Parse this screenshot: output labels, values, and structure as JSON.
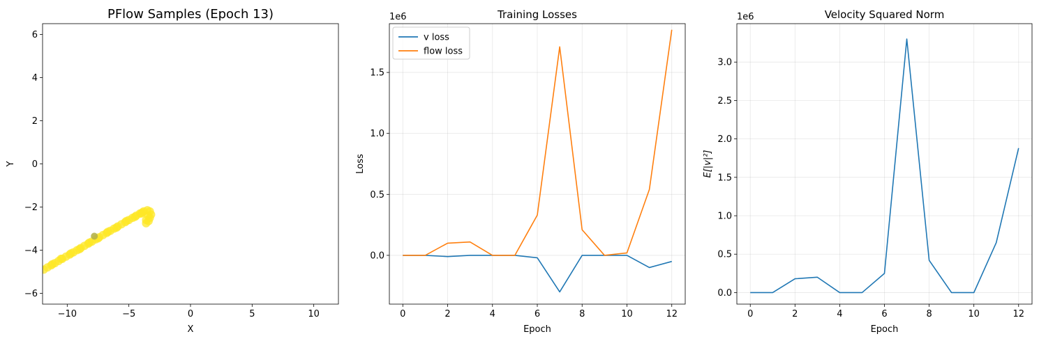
{
  "chart_data": [
    {
      "type": "scatter",
      "title": "PFlow Samples (Epoch 13)",
      "xlabel": "X",
      "ylabel": "Y",
      "xlim": [
        -12,
        12
      ],
      "ylim": [
        -6.5,
        6.5
      ],
      "xticks": [
        -10,
        -5,
        0,
        5,
        10
      ],
      "xtick_labels": [
        "−10",
        "−5",
        "0",
        "5",
        "10"
      ],
      "yticks": [
        -6,
        -4,
        -2,
        0,
        2,
        4,
        6
      ],
      "ytick_labels": [
        "−6",
        "−4",
        "−2",
        "0",
        "2",
        "4",
        "6"
      ],
      "grid": false,
      "point_color": "#fde725",
      "highlight_color": "#b5b34a",
      "points": [
        [
          -3.4,
          -2.65
        ],
        [
          -3.6,
          -2.6
        ],
        [
          -3.3,
          -2.5
        ],
        [
          -3.2,
          -2.35
        ],
        [
          -3.3,
          -2.2
        ],
        [
          -3.5,
          -2.15
        ],
        [
          -3.8,
          -2.2
        ],
        [
          -4.1,
          -2.3
        ],
        [
          -4.4,
          -2.4
        ],
        [
          -4.7,
          -2.5
        ],
        [
          -5.0,
          -2.6
        ],
        [
          -5.3,
          -2.7
        ],
        [
          -5.6,
          -2.8
        ],
        [
          -5.9,
          -2.9
        ],
        [
          -6.2,
          -3.0
        ],
        [
          -6.5,
          -3.1
        ],
        [
          -6.8,
          -3.2
        ],
        [
          -7.1,
          -3.3
        ],
        [
          -7.4,
          -3.4
        ],
        [
          -7.7,
          -3.5
        ],
        [
          -8.0,
          -3.6
        ],
        [
          -8.3,
          -3.7
        ],
        [
          -8.6,
          -3.8
        ],
        [
          -8.9,
          -3.9
        ],
        [
          -9.2,
          -4.0
        ],
        [
          -9.5,
          -4.1
        ],
        [
          -9.8,
          -4.2
        ],
        [
          -10.1,
          -4.3
        ],
        [
          -10.4,
          -4.4
        ],
        [
          -10.7,
          -4.5
        ],
        [
          -11.0,
          -4.6
        ],
        [
          -11.3,
          -4.7
        ],
        [
          -11.6,
          -4.8
        ],
        [
          -11.9,
          -4.9
        ],
        [
          -3.9,
          -2.25
        ],
        [
          -4.5,
          -2.45
        ],
        [
          -5.2,
          -2.65
        ],
        [
          -6.0,
          -2.95
        ],
        [
          -6.7,
          -3.15
        ],
        [
          -7.5,
          -3.45
        ],
        [
          -8.2,
          -3.65
        ],
        [
          -9.0,
          -3.95
        ],
        [
          -9.7,
          -4.15
        ],
        [
          -10.5,
          -4.4
        ],
        [
          -11.2,
          -4.65
        ],
        [
          -3.6,
          -2.75
        ],
        [
          -3.45,
          -2.4
        ],
        [
          -4.0,
          -2.3
        ]
      ],
      "highlight_point": [
        -7.8,
        -3.35
      ]
    },
    {
      "type": "line",
      "title": "Training Losses",
      "xlabel": "Epoch",
      "ylabel": "Loss",
      "offset_text": "1e6",
      "xlim": [
        -0.6,
        12.6
      ],
      "ylim": [
        -0.4,
        1.9
      ],
      "xticks": [
        0,
        2,
        4,
        6,
        8,
        10,
        12
      ],
      "xtick_labels": [
        "0",
        "2",
        "4",
        "6",
        "8",
        "10",
        "12"
      ],
      "yticks": [
        0,
        0.5,
        1.0,
        1.5
      ],
      "ytick_labels": [
        "0.0",
        "0.5",
        "1.0",
        "1.5"
      ],
      "grid": true,
      "legend": "top-left",
      "x": [
        0,
        1,
        2,
        3,
        4,
        5,
        6,
        7,
        8,
        9,
        10,
        11,
        12
      ],
      "series": [
        {
          "name": "v loss",
          "color": "#1f77b4",
          "values": [
            0.0,
            0.0,
            -0.01,
            0.0,
            0.0,
            0.0,
            -0.02,
            -0.3,
            0.0,
            0.0,
            0.0,
            -0.1,
            -0.05
          ]
        },
        {
          "name": "flow loss",
          "color": "#ff7f0e",
          "values": [
            0.0,
            0.0,
            0.1,
            0.11,
            0.0,
            0.0,
            0.33,
            1.71,
            0.21,
            0.0,
            0.02,
            0.54,
            1.85
          ]
        }
      ]
    },
    {
      "type": "line",
      "title": "Velocity Squared Norm",
      "xlabel": "Epoch",
      "ylabel": "E[|v|²]",
      "offset_text": "1e6",
      "xlim": [
        -0.6,
        12.6
      ],
      "ylim": [
        -0.15,
        3.5
      ],
      "xticks": [
        0,
        2,
        4,
        6,
        8,
        10,
        12
      ],
      "xtick_labels": [
        "0",
        "2",
        "4",
        "6",
        "8",
        "10",
        "12"
      ],
      "yticks": [
        0,
        0.5,
        1.0,
        1.5,
        2.0,
        2.5,
        3.0
      ],
      "ytick_labels": [
        "0.0",
        "0.5",
        "1.0",
        "1.5",
        "2.0",
        "2.5",
        "3.0"
      ],
      "grid": true,
      "x": [
        0,
        1,
        2,
        3,
        4,
        5,
        6,
        7,
        8,
        9,
        10,
        11,
        12
      ],
      "series": [
        {
          "color": "#1f77b4",
          "values": [
            0.0,
            0.0,
            0.18,
            0.2,
            0.0,
            0.0,
            0.25,
            3.3,
            0.42,
            0.0,
            0.0,
            0.65,
            1.88
          ]
        }
      ]
    }
  ]
}
